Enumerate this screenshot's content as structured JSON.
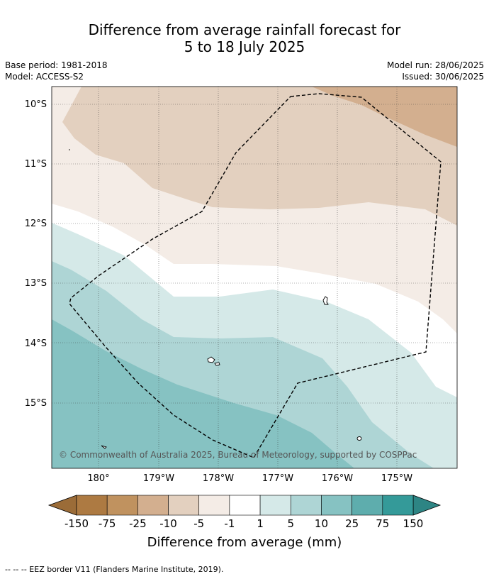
{
  "title": {
    "line1": "Difference from average rainfall forecast for",
    "line2": "5 to 18 July 2025"
  },
  "meta": {
    "base_period": "Base period: 1981-2018",
    "model": "Model: ACCESS-S2",
    "model_run": "Model run: 28/06/2025",
    "issued": "Issued: 30/06/2025"
  },
  "map": {
    "lat_range": [
      -16.1,
      -9.7
    ],
    "lon_range": [
      180.8,
      174.0
    ],
    "lat_labels": [
      "10°S",
      "11°S",
      "12°S",
      "13°S",
      "14°S",
      "15°S"
    ],
    "lon_labels": [
      "180°",
      "179°W",
      "178°W",
      "177°W",
      "176°W",
      "175°W"
    ],
    "copyright": "© Commonwealth of Australia 2025, Bureau of Meteorology, supported by COSPPac"
  },
  "colorbar": {
    "ticks": [
      "-150",
      "-75",
      "-25",
      "-10",
      "-5",
      "-1",
      "1",
      "5",
      "10",
      "25",
      "75",
      "150"
    ],
    "colors": [
      "#ad7a42",
      "#c0925f",
      "#d3af8f",
      "#e3d0bf",
      "#f4ece6",
      "#ffffff",
      "#d5e9e8",
      "#aed5d5",
      "#86c2c2",
      "#5eadad",
      "#349a99"
    ],
    "under_color": "#9b6c38",
    "over_color": "#2d8584",
    "label": "Difference from average (mm)"
  },
  "footnote": "--  --  -- EEZ border V11 (Flanders Marine Institute, 2019)."
}
